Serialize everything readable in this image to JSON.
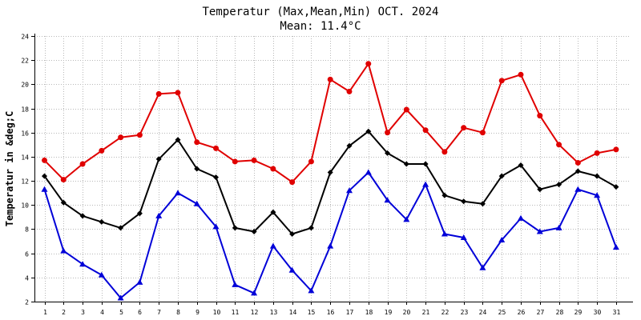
{
  "chart_data": {
    "type": "line",
    "title": "Temperatur (Max,Mean,Min) OCT. 2024",
    "subtitle": "Mean: 11.4°C",
    "xlabel": "",
    "ylabel": "Temperatur in &deg;C",
    "ylim": [
      2,
      24
    ],
    "yticks": [
      2,
      4,
      6,
      8,
      10,
      12,
      14,
      16,
      18,
      20,
      22,
      24
    ],
    "grid": true,
    "legend": "none",
    "categories": [
      "1",
      "2",
      "3",
      "4",
      "5",
      "6",
      "7",
      "8",
      "9",
      "10",
      "11",
      "12",
      "13",
      "14",
      "15",
      "16",
      "17",
      "18",
      "19",
      "20",
      "21",
      "22",
      "23",
      "24",
      "25",
      "26",
      "27",
      "28",
      "29",
      "30",
      "31"
    ],
    "series": [
      {
        "name": "Max",
        "color": "#e00000",
        "marker": "circle",
        "values": [
          13.7,
          12.1,
          13.4,
          14.5,
          15.6,
          15.8,
          19.2,
          19.3,
          15.2,
          14.7,
          13.6,
          13.7,
          13.0,
          11.9,
          13.6,
          20.4,
          19.4,
          21.7,
          16.0,
          17.9,
          16.2,
          14.4,
          16.4,
          16.0,
          20.3,
          20.8,
          17.4,
          15.0,
          13.5,
          14.3,
          14.6
        ]
      },
      {
        "name": "Mean",
        "color": "#000000",
        "marker": "diamond",
        "values": [
          12.4,
          10.2,
          9.1,
          8.6,
          8.1,
          9.3,
          13.8,
          15.4,
          13.0,
          12.3,
          8.1,
          7.8,
          9.4,
          7.6,
          8.1,
          12.7,
          14.9,
          16.1,
          14.3,
          13.4,
          13.4,
          10.8,
          10.3,
          10.1,
          12.4,
          13.3,
          11.3,
          11.7,
          12.8,
          12.4,
          11.5
        ]
      },
      {
        "name": "Min",
        "color": "#0000d8",
        "marker": "triangle",
        "values": [
          11.3,
          6.2,
          5.1,
          4.2,
          2.3,
          3.6,
          9.1,
          11.0,
          10.1,
          8.2,
          3.4,
          2.7,
          6.6,
          4.6,
          2.9,
          6.6,
          11.2,
          12.7,
          10.4,
          8.8,
          11.7,
          7.6,
          7.3,
          4.8,
          7.1,
          8.9,
          7.8,
          8.1,
          11.3,
          10.8,
          6.5
        ]
      }
    ]
  }
}
